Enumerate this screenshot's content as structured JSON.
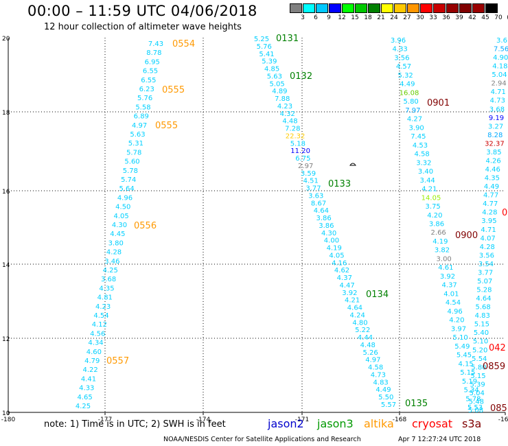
{
  "header": {
    "title": "00:00 – 11:59 UTC 04/06/2018",
    "subtitle": "12 hour collection of altimeter wave heights"
  },
  "colorbar": {
    "labels": [
      "3",
      "6",
      "9",
      "12",
      "15",
      "18",
      "21",
      "24",
      "27",
      "30",
      "33",
      "36",
      "39",
      "42",
      "45",
      "70",
      "(ft)"
    ],
    "colors": [
      "#808080",
      "#00ffff",
      "#00c8ff",
      "#0000ff",
      "#00ff00",
      "#00c800",
      "#008000",
      "#ffff00",
      "#ffc800",
      "#ff9600",
      "#ff0000",
      "#c80000",
      "#960000",
      "#800000",
      "#9a0000",
      "#000000"
    ]
  },
  "axes": {
    "x_ticks": [
      "-180",
      "-177",
      "-174",
      "-171",
      "-168",
      "-165"
    ],
    "y_ticks": [
      "20",
      "18",
      "16",
      "14",
      "12",
      "10"
    ]
  },
  "passes": [
    {
      "label": "0554",
      "color": "#ff9900"
    },
    {
      "label": "0555",
      "color": "#ff9900"
    },
    {
      "label": "0555",
      "color": "#ff9900"
    },
    {
      "label": "0556",
      "color": "#ff9900"
    },
    {
      "label": "0557",
      "color": "#ff9900"
    },
    {
      "label": "0131",
      "color": "#008000"
    },
    {
      "label": "0132",
      "color": "#008000"
    },
    {
      "label": "0133",
      "color": "#008000"
    },
    {
      "label": "0134",
      "color": "#008000"
    },
    {
      "label": "0135",
      "color": "#008000"
    },
    {
      "label": "0901",
      "color": "#800000"
    },
    {
      "label": "0900",
      "color": "#800000"
    },
    {
      "label": "0859",
      "color": "#800000"
    },
    {
      "label": "085",
      "color": "#800000"
    },
    {
      "label": "042",
      "color": "#ff0000"
    },
    {
      "label": "0",
      "color": "#ff0000"
    }
  ],
  "tracks": {
    "altika_west": [
      "7.43",
      "8.78",
      "6.95",
      "6.55",
      "6.55",
      "6.23",
      "5.76",
      "5.58",
      "6.89",
      "4.97",
      "5.63",
      "5.31",
      "5.78",
      "5.60",
      "5.78",
      "5.74",
      "5.64",
      "4.96",
      "4.50",
      "4.05",
      "4.30",
      "4.45",
      "3.80",
      "4.28",
      "3.46",
      "4.25",
      "3.68",
      "4.35",
      "4.81",
      "4.23",
      "4.54",
      "4.12",
      "4.56",
      "4.34",
      "4.60",
      "4.79",
      "4.22",
      "4.41",
      "4.33",
      "4.65",
      "4.25"
    ],
    "jason3_center": [
      "5.25",
      "5.76",
      "5.41",
      "5.39",
      "4.85",
      "5.63",
      "5.05",
      "4.89",
      "7.88",
      "4.23",
      "4.32",
      "4.48",
      "7.28",
      "22.32",
      "5.18",
      "11.20",
      "6.75",
      "2.97",
      "3.59",
      "4.51",
      "3.77",
      "3.63",
      "8.67",
      "4.64",
      "3.86",
      "3.86",
      "4.30",
      "4.00",
      "4.19",
      "4.05",
      "4.16",
      "4.62",
      "4.37",
      "4.47",
      "3.92",
      "4.21",
      "4.64",
      "4.24",
      "4.80",
      "5.22",
      "4.44",
      "4.48",
      "5.26",
      "4.97",
      "4.58",
      "4.73",
      "4.83",
      "4.49",
      "5.50",
      "5.57"
    ],
    "jason3_east": [
      "3.96",
      "4.33",
      "3.56",
      "4.57",
      "5.32",
      "4.49",
      "16.08",
      "5.80",
      "7.97",
      "4.27",
      "3.90",
      "7.45",
      "4.53",
      "4.58",
      "3.32",
      "3.40",
      "3.44",
      "4.21",
      "14.05",
      "3.75",
      "4.20",
      "3.86",
      "2.66",
      "4.19",
      "3.82",
      "3.00",
      "4.61",
      "3.92",
      "4.37",
      "4.01",
      "4.54",
      "4.96",
      "4.20",
      "3.97",
      "5.10",
      "5.49",
      "5.45",
      "4.15",
      "5.15",
      "5.19",
      "5.34",
      "5.78",
      "5.53"
    ],
    "far_east": [
      "3.6",
      "7.56",
      "4.90",
      "4.18",
      "5.04",
      "2.94",
      "4.71",
      "4.73",
      "3.68",
      "9.19",
      "3.27",
      "8.28",
      "32.37",
      "3.85",
      "4.26",
      "4.46",
      "4.35",
      "4.49",
      "4.77",
      "4.77",
      "4.28",
      "3.95",
      "4.71",
      "4.07",
      "4.28",
      "3.56",
      "3.54",
      "3.77",
      "5.07",
      "5.28",
      "4.64",
      "5.68",
      "4.83",
      "5.15",
      "5.40",
      "5.10",
      "5.20",
      "5.54",
      "5.80",
      "5.15",
      "5.39",
      "5.04",
      "5.48",
      "5.08"
    ]
  },
  "footer": {
    "note": "note:  1) Time is in UTC;  2) SWH is in feet",
    "legend": [
      {
        "label": "jason2",
        "color": "#0000cc"
      },
      {
        "label": "jason3",
        "color": "#009900"
      },
      {
        "label": "altika",
        "color": "#ff9900"
      },
      {
        "label": "cryosat",
        "color": "#ff0000"
      },
      {
        "label": "s3a",
        "color": "#800000"
      }
    ],
    "credit": "NOAA/NESDIS Center for Satellite Applications and Research",
    "timestamp": "Apr  7 12:27:24 UTC 2018"
  }
}
